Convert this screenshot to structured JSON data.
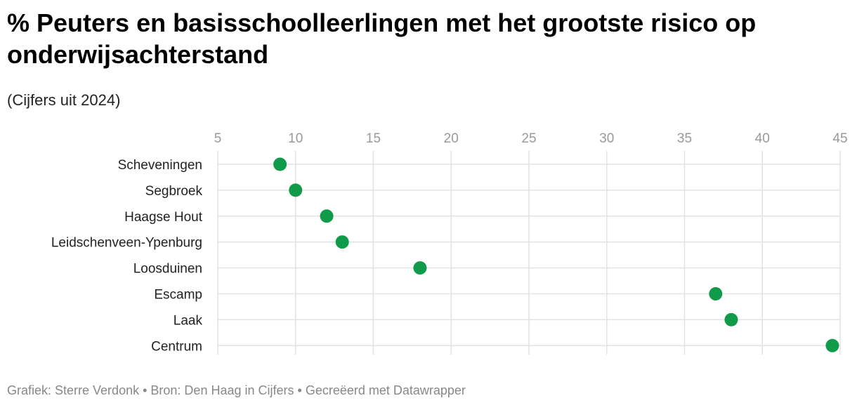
{
  "header": {
    "title": "% Peuters en basisschoolleerlingen met het grootste risico op onderwijsachterstand",
    "subtitle": "(Cijfers uit 2024)"
  },
  "footer": {
    "credit": "Grafiek: Sterre Verdonk",
    "separator": " • ",
    "source": "Bron: Den Haag in Cijfers",
    "tool": "Gecreëerd met Datawrapper"
  },
  "chart_data": {
    "type": "scatter",
    "title": "% Peuters en basisschoolleerlingen met het grootste risico op onderwijsachterstand",
    "subtitle": "(Cijfers uit 2024)",
    "xlabel": "",
    "ylabel": "",
    "xlim": [
      5,
      45
    ],
    "xticks": [
      5,
      10,
      15,
      20,
      25,
      30,
      35,
      40,
      45
    ],
    "grid": true,
    "axis_position": "top",
    "marker_color": "#0f9b4a",
    "categories": [
      "Scheveningen",
      "Segbroek",
      "Haagse Hout",
      "Leidschenveen-Ypenburg",
      "Loosduinen",
      "Escamp",
      "Laak",
      "Centrum"
    ],
    "values": [
      9,
      10,
      12,
      13,
      18,
      37,
      38,
      44.5
    ]
  }
}
